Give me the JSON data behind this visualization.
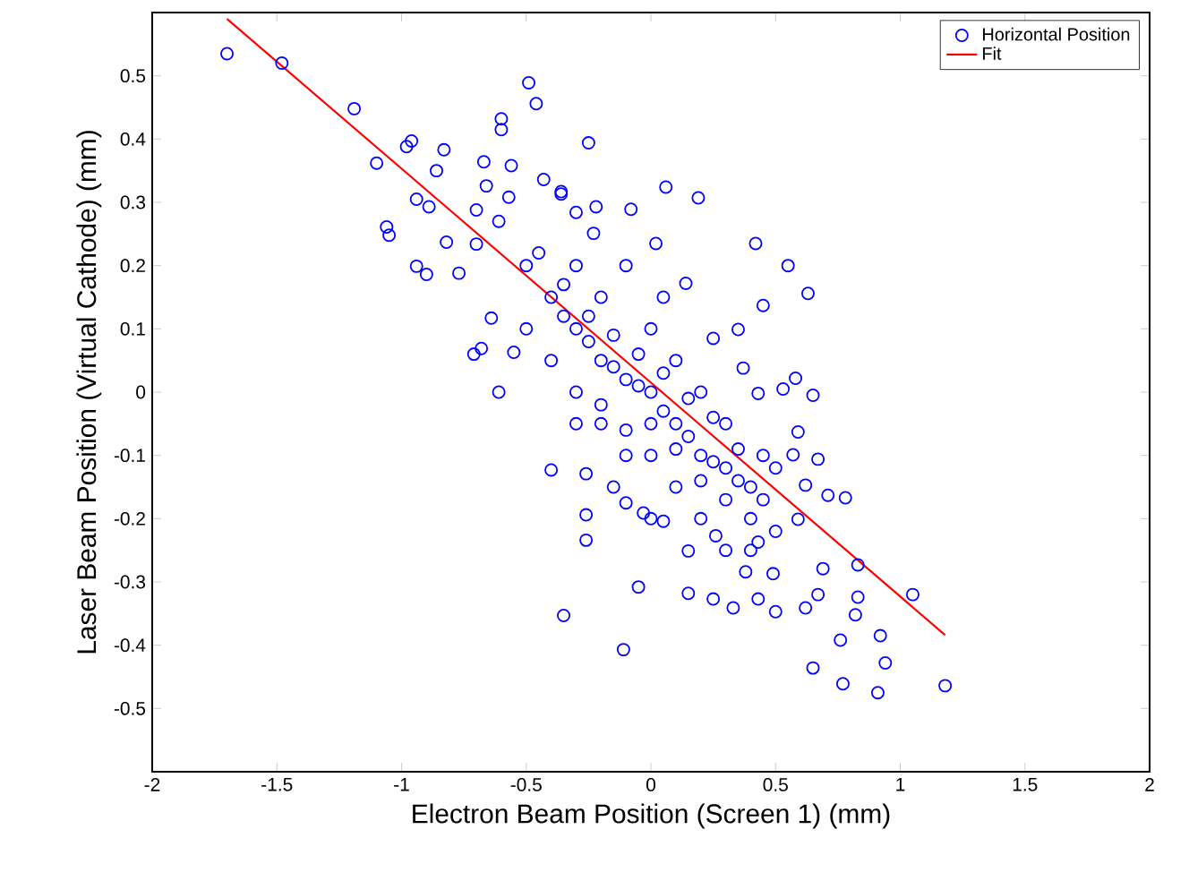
{
  "chart_data": {
    "type": "scatter",
    "xlabel": "Electron Beam Position (Screen 1) (mm)",
    "ylabel": "Laser Beam Position (Virtual Cathode) (mm)",
    "xlim": [
      -2,
      2
    ],
    "ylim": [
      -0.6,
      0.6
    ],
    "xticks": [
      -2,
      -1.5,
      -1,
      -0.5,
      0,
      0.5,
      1,
      1.5,
      2
    ],
    "yticks": [
      -0.5,
      -0.4,
      -0.3,
      -0.2,
      -0.1,
      0,
      0.1,
      0.2,
      0.3,
      0.4,
      0.5
    ],
    "legend": "top right",
    "series": [
      {
        "name": "Horizontal Position",
        "marker": "circle",
        "color": "#0000ff",
        "x": [
          -1.7,
          -1.48,
          -1.19,
          -1.1,
          -0.98,
          -0.96,
          -0.83,
          -0.86,
          -0.94,
          -0.89,
          -1.06,
          -1.05,
          -0.94,
          -0.9,
          -0.77,
          -0.82,
          -0.7,
          -0.7,
          -0.67,
          -0.6,
          -0.6,
          -0.56,
          -0.49,
          -0.46,
          -0.25,
          0.06,
          -0.64,
          -0.71,
          -0.68,
          -0.61,
          -0.55,
          -0.66,
          -0.43,
          -0.57,
          -0.36,
          -0.08,
          -0.61,
          -0.23,
          -0.3,
          0.19,
          0.42,
          0.55,
          0.63,
          0.45,
          0.58,
          0.65,
          0.53,
          0.59,
          0.67,
          0.78,
          0.71,
          0.83,
          1.05,
          0.83,
          0.82,
          0.92,
          0.76,
          0.94,
          0.65,
          0.77,
          0.91,
          1.18,
          0.67,
          0.62,
          0.5,
          0.43,
          0.33,
          0.15,
          0.25,
          -0.05,
          -0.11,
          -0.35,
          -0.26,
          -0.26,
          -0.1,
          -0.03,
          0.15,
          0.38,
          0.49,
          0.69,
          -0.4,
          -0.26,
          0.05,
          0.26,
          0.43,
          0.59,
          0.62,
          0.57,
          0.43,
          0.37,
          0.35,
          0.25,
          0.14,
          0.02,
          -0.22,
          -0.36,
          -0.4,
          -0.3,
          -0.2,
          -0.1,
          0,
          0.1,
          0.2,
          0.3,
          0.4,
          -0.2,
          0,
          0.1,
          0.2,
          0.3,
          -0.3,
          -0.1,
          0,
          0.1,
          0.2,
          0.4,
          -0.4,
          -0.5,
          -0.5,
          -0.3,
          -0.1,
          0.05,
          -0.2,
          0.5,
          0.5,
          0.3,
          0,
          -0.15,
          -0.35,
          -0.25,
          -0.15,
          -0.05,
          0.05,
          0.15,
          0.25,
          0.35,
          0.45,
          -0.45,
          -0.35,
          -0.25,
          -0.15,
          -0.05,
          0.05,
          0.15,
          0.25,
          0.35,
          0.45,
          -0.3,
          -0.2,
          -0.1,
          0,
          0.1,
          0.2,
          0.3,
          0.4
        ],
        "values": [
          0.535,
          0.52,
          0.448,
          0.362,
          0.388,
          0.397,
          0.383,
          0.35,
          0.305,
          0.293,
          0.261,
          0.248,
          0.199,
          0.186,
          0.188,
          0.237,
          0.234,
          0.288,
          0.364,
          0.432,
          0.415,
          0.358,
          0.489,
          0.456,
          0.394,
          0.324,
          0.117,
          0.06,
          0.069,
          0.0,
          0.063,
          0.326,
          0.336,
          0.308,
          0.317,
          0.289,
          0.27,
          0.251,
          0.284,
          0.307,
          0.235,
          0.2,
          0.156,
          0.137,
          0.022,
          -0.005,
          0.005,
          -0.063,
          -0.106,
          -0.167,
          -0.163,
          -0.273,
          -0.32,
          -0.324,
          -0.352,
          -0.385,
          -0.392,
          -0.428,
          -0.436,
          -0.461,
          -0.475,
          -0.464,
          -0.32,
          -0.341,
          -0.347,
          -0.327,
          -0.341,
          -0.318,
          -0.327,
          -0.308,
          -0.407,
          -0.353,
          -0.234,
          -0.194,
          -0.175,
          -0.191,
          -0.251,
          -0.284,
          -0.287,
          -0.279,
          -0.123,
          -0.129,
          -0.204,
          -0.227,
          -0.237,
          -0.201,
          -0.147,
          -0.099,
          -0.002,
          0.038,
          0.099,
          0.085,
          0.172,
          0.235,
          0.293,
          0.313,
          0.15,
          0.1,
          0.05,
          0.02,
          0,
          -0.05,
          -0.1,
          -0.12,
          -0.15,
          0.15,
          0.1,
          0.05,
          0,
          -0.05,
          -0.05,
          -0.1,
          -0.1,
          -0.15,
          -0.2,
          -0.2,
          0.05,
          0.1,
          0.2,
          0.2,
          0.2,
          0.15,
          -0.05,
          -0.12,
          -0.22,
          -0.25,
          -0.2,
          -0.15,
          0.12,
          0.08,
          0.04,
          0.01,
          -0.03,
          -0.07,
          -0.11,
          -0.14,
          -0.17,
          0.22,
          0.17,
          0.12,
          0.09,
          0.06,
          0.03,
          -0.01,
          -0.04,
          -0.09,
          -0.1,
          0.0,
          -0.02,
          -0.06,
          -0.05,
          -0.09,
          -0.14,
          -0.17,
          -0.25
        ]
      },
      {
        "name": "Fit",
        "type": "line",
        "marker": "none",
        "color": "#ff0000",
        "x": [
          -1.7,
          1.18
        ],
        "values": [
          0.59,
          -0.384
        ]
      }
    ]
  }
}
